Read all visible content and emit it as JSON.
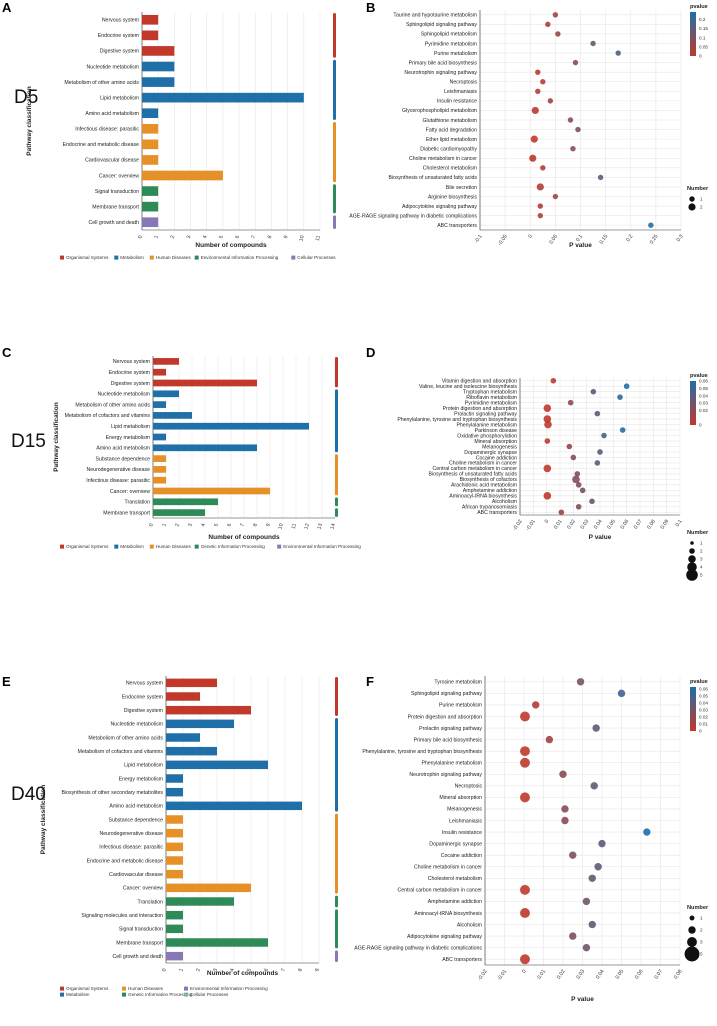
{
  "figure": {
    "legend_color_title": "pvalue",
    "legend_size_title": "Number"
  },
  "chart_data": [
    {
      "panel": "A",
      "group_label": "D5",
      "type": "bar",
      "orientation": "horizontal",
      "xlabel": "Number of compounds",
      "ylabel": "Pathway classification",
      "xlim": [
        0,
        11
      ],
      "xticks": [
        0,
        1,
        2,
        3,
        4,
        5,
        6,
        7,
        8,
        9,
        10,
        11
      ],
      "categories": [
        "Nervous system",
        "Endocrine system",
        "Digestive system",
        "Nucleotide metabolism",
        "Metabolism of other amino acids",
        "Lipid metabolism",
        "Amino acid metabolism",
        "Infectious disease: parasitic",
        "Endocrine and metabolic disease",
        "Cardiovascular disease",
        "Cancer: overview",
        "Signal transduction",
        "Membrane transport",
        "Cell growth and death"
      ],
      "values": [
        1,
        1,
        2,
        2,
        2,
        10,
        1,
        1,
        1,
        1,
        5,
        1,
        1,
        1
      ],
      "classes": [
        "Organismal Systems",
        "Organismal Systems",
        "Organismal Systems",
        "Metabolism",
        "Metabolism",
        "Metabolism",
        "Metabolism",
        "Human Diseases",
        "Human Diseases",
        "Human Diseases",
        "Human Diseases",
        "Environmental Information Processing",
        "Environmental Information Processing",
        "Cellular Processes"
      ],
      "legend": [
        {
          "name": "Organismal Systems",
          "color": "#c0392b"
        },
        {
          "name": "Metabolism",
          "color": "#1f6fa8"
        },
        {
          "name": "Human Diseases",
          "color": "#e69028"
        },
        {
          "name": "Environmental Information Processing",
          "color": "#2e8b57"
        },
        {
          "name": "Cellular Processes",
          "color": "#8878b8"
        }
      ]
    },
    {
      "panel": "B",
      "type": "scatter",
      "xlabel": "P value",
      "xlim": [
        -0.1,
        0.3
      ],
      "xticks": [
        -0.1,
        -0.05,
        0,
        0.05,
        0.1,
        0.15,
        0.2,
        0.25,
        0.3
      ],
      "categories": [
        "Taurine and hypotaurine metabolism",
        "Sphingolipid signaling pathway",
        "Sphingolipid metabolism",
        "Pyrimidine metabolism",
        "Purine metabolism",
        "Primary bile acid biosynthesis",
        "Neurotrophin signaling pathway",
        "Necroptosis",
        "Leishmaniasis",
        "Insulin resistance",
        "Glycerophospholipid metabolism",
        "Glutathione metabolism",
        "Fatty acid degradation",
        "Ether lipid metabolism",
        "Diabetic cardiomyopathy",
        "Choline metabolism in cancer",
        "Cholesterol metabolism",
        "Biosynthesis of unsaturated fatty acids",
        "Bile secretion",
        "Arginine biosynthesis",
        "Adipocytokine signaling pathway",
        "AGE-RAGE signaling pathway in diabetic complications",
        "ABC transporters"
      ],
      "x": [
        0.05,
        0.035,
        0.055,
        0.125,
        0.175,
        0.09,
        0.015,
        0.025,
        0.015,
        0.04,
        0.01,
        0.08,
        0.095,
        0.008,
        0.085,
        0.005,
        0.025,
        0.14,
        0.02,
        0.05,
        0.02,
        0.02,
        0.24
      ],
      "sizes": [
        1,
        1,
        1,
        1,
        1,
        1,
        1,
        1,
        1,
        1,
        2,
        1,
        1,
        2,
        1,
        2,
        1,
        1,
        2,
        1,
        1,
        1,
        1
      ],
      "color_scale": {
        "min": 0,
        "max": 0.24,
        "ticks": [
          0,
          0.05,
          0.1,
          0.15,
          0.2
        ]
      },
      "size_legend": [
        1,
        2
      ]
    },
    {
      "panel": "C",
      "group_label": "D15",
      "type": "bar",
      "orientation": "horizontal",
      "xlabel": "Number of compounds",
      "ylabel": "Pathway classification",
      "xlim": [
        0,
        14
      ],
      "xticks": [
        0,
        1,
        2,
        3,
        4,
        5,
        6,
        7,
        8,
        9,
        10,
        11,
        12,
        13,
        14
      ],
      "categories": [
        "Nervous system",
        "Endocrine system",
        "Digestive system",
        "Nucleotide metabolism",
        "Metabolism of other amino acids",
        "Metabolism of cofactors and vitamins",
        "Lipid metabolism",
        "Energy metabolism",
        "Amino acid metabolism",
        "Substance dependence",
        "Neurodegenerative disease",
        "Infectious disease: parasitic",
        "Cancer: overview",
        "Translation",
        "Membrane transport"
      ],
      "values": [
        2,
        1,
        8,
        2,
        1,
        3,
        12,
        1,
        8,
        1,
        1,
        1,
        9,
        5,
        4
      ],
      "classes": [
        "Organismal Systems",
        "Organismal Systems",
        "Organismal Systems",
        "Metabolism",
        "Metabolism",
        "Metabolism",
        "Metabolism",
        "Metabolism",
        "Metabolism",
        "Human Diseases",
        "Human Diseases",
        "Human Diseases",
        "Human Diseases",
        "Genetic Information Processing",
        "Environmental Information Processing"
      ],
      "legend": [
        {
          "name": "Organismal Systems",
          "color": "#c0392b"
        },
        {
          "name": "Metabolism",
          "color": "#1f6fa8"
        },
        {
          "name": "Human Diseases",
          "color": "#e69028"
        },
        {
          "name": "Genetic Information Processing",
          "color": "#2e8b57"
        },
        {
          "name": "Environmental Information Processing",
          "color": "#8878b8"
        }
      ]
    },
    {
      "panel": "D",
      "type": "scatter",
      "xlabel": "P value",
      "xlim": [
        -0.02,
        0.1
      ],
      "xticks": [
        -0.02,
        -0.01,
        0,
        0.01,
        0.02,
        0.03,
        0.04,
        0.05,
        0.06,
        0.07,
        0.08,
        0.09,
        0.1
      ],
      "categories": [
        "Vitamin digestion and absorption",
        "Valine, leucine and isoleucine biosynthesis",
        "Tryptophan metabolism",
        "Riboflavin metabolism",
        "Pyrimidine metabolism",
        "Protein digestion and absorption",
        "Prolactin signaling pathway",
        "Phenylalanine, tyrosine and tryptophan biosynthesis",
        "Phenylalanine metabolism",
        "Parkinson disease",
        "Oxidative phosphorylation",
        "Mineral absorption",
        "Melanogenesis",
        "Dopaminergic synapse",
        "Cocaine addiction",
        "Choline metabolism in cancer",
        "Central carbon metabolism in cancer",
        "Biosynthesis of unsaturated fatty acids",
        "Biosynthesis of cofactors",
        "Arachidonic acid metabolism",
        "Amphetamine addiction",
        "Aminoacyl-tRNA biosynthesis",
        "Alcoholism",
        "African trypanosomiasis",
        "ABC transporters"
      ],
      "x": [
        0.005,
        0.06,
        0.035,
        0.055,
        0.018,
        0.0005,
        0.038,
        0.0005,
        0.001,
        0.057,
        0.043,
        0.0005,
        0.017,
        0.04,
        0.02,
        0.038,
        0.0005,
        0.023,
        0.022,
        0.024,
        0.027,
        0.0005,
        0.034,
        0.024,
        0.011
      ],
      "sizes": [
        2,
        2,
        2,
        2,
        2,
        3,
        2,
        3,
        3,
        2,
        2,
        2,
        2,
        2,
        2,
        2,
        3,
        2,
        3,
        2,
        2,
        3,
        2,
        2,
        2
      ],
      "color_scale": {
        "min": 0,
        "max": 0.06,
        "ticks": [
          0,
          0.02,
          0.03,
          0.04,
          0.05,
          0.06
        ]
      },
      "size_legend": [
        1,
        2,
        3,
        4,
        5
      ]
    },
    {
      "panel": "E",
      "group_label": "D40",
      "type": "bar",
      "orientation": "horizontal",
      "xlabel": "Number of compounds",
      "ylabel": "Pathway classification",
      "xlim": [
        0,
        9
      ],
      "xticks": [
        0,
        1,
        2,
        3,
        4,
        5,
        6,
        7,
        8,
        9
      ],
      "categories": [
        "Nervous system",
        "Endocrine system",
        "Digestive system",
        "Nucleotide metabolism",
        "Metabolism of other amino acids",
        "Metabolism of cofactors and vitamins",
        "Lipid metabolism",
        "Energy metabolism",
        "Biosynthesis of other secondary metabolites",
        "Amino acid metabolism",
        "Substance dependence",
        "Neurodegenerative disease",
        "Infectious disease: parasitic",
        "Endocrine and metabolic disease",
        "Cardiovascular disease",
        "Cancer: overview",
        "Translation",
        "Signaling molecules and interaction",
        "Signal transduction",
        "Membrane transport",
        "Cell growth and death"
      ],
      "values": [
        3,
        2,
        5,
        4,
        2,
        3,
        6,
        1,
        1,
        8,
        1,
        1,
        1,
        1,
        1,
        5,
        4,
        1,
        1,
        6,
        1
      ],
      "classes": [
        "Organismal Systems",
        "Organismal Systems",
        "Organismal Systems",
        "Metabolism",
        "Metabolism",
        "Metabolism",
        "Metabolism",
        "Metabolism",
        "Metabolism",
        "Metabolism",
        "Human Diseases",
        "Human Diseases",
        "Human Diseases",
        "Human Diseases",
        "Human Diseases",
        "Human Diseases",
        "Genetic Information Processing",
        "Environmental Information Processing",
        "Environmental Information Processing",
        "Environmental Information Processing",
        "Cellular Processes"
      ],
      "legend": [
        {
          "name": "Organismal Systems",
          "color": "#c0392b"
        },
        {
          "name": "Human Diseases",
          "color": "#e69028"
        },
        {
          "name": "Environmental Information Processing",
          "color": "#8878b8"
        },
        {
          "name": "Metabolism",
          "color": "#1f6fa8"
        },
        {
          "name": "Genetic Information Processing",
          "color": "#2e8b57"
        },
        {
          "name": "Cellular Processes",
          "color": "#7fb3a8"
        }
      ]
    },
    {
      "panel": "F",
      "type": "scatter",
      "xlabel": "P value",
      "xlim": [
        -0.02,
        0.08
      ],
      "xticks": [
        -0.02,
        -0.01,
        0,
        0.01,
        0.02,
        0.03,
        0.04,
        0.05,
        0.06,
        0.07,
        0.08
      ],
      "categories": [
        "Tyrosine metabolism",
        "Sphingolipid signaling pathway",
        "Purine metabolism",
        "Protein digestion and absorption",
        "Prolactin signaling pathway",
        "Primary bile acid biosynthesis",
        "Phenylalanine, tyrosine and tryptophan biosynthesis",
        "Phenylalanine metabolism",
        "Neurotrophin signaling pathway",
        "Necroptosis",
        "Mineral absorption",
        "Melanogenesis",
        "Leishmaniasis",
        "Insulin resistance",
        "Dopaminergic synapse",
        "Cocaine addiction",
        "Choline metabolism in cancer",
        "Cholesterol metabolism",
        "Central carbon metabolism in cancer",
        "Amphetamine addiction",
        "Aminoacyl-tRNA biosynthesis",
        "Alcoholism",
        "Adipocytokine signaling pathway",
        "AGE-RAGE signaling pathway in diabetic complications",
        "ABC transporters"
      ],
      "x": [
        0.029,
        0.05,
        0.006,
        0.0005,
        0.037,
        0.013,
        0.0005,
        0.0005,
        0.02,
        0.036,
        0.0005,
        0.021,
        0.021,
        0.063,
        0.04,
        0.025,
        0.038,
        0.035,
        0.0005,
        0.032,
        0.0005,
        0.035,
        0.025,
        0.032,
        0.0005
      ],
      "sizes": [
        2,
        2,
        2,
        3,
        2,
        2,
        3,
        3,
        2,
        2,
        3,
        2,
        2,
        2,
        2,
        2,
        2,
        2,
        3,
        2,
        3,
        2,
        2,
        2,
        3
      ],
      "color_scale": {
        "min": 0,
        "max": 0.063,
        "ticks": [
          0,
          0.01,
          0.02,
          0.03,
          0.04,
          0.05,
          0.06
        ]
      },
      "size_legend": [
        1,
        2,
        3,
        5
      ]
    }
  ]
}
